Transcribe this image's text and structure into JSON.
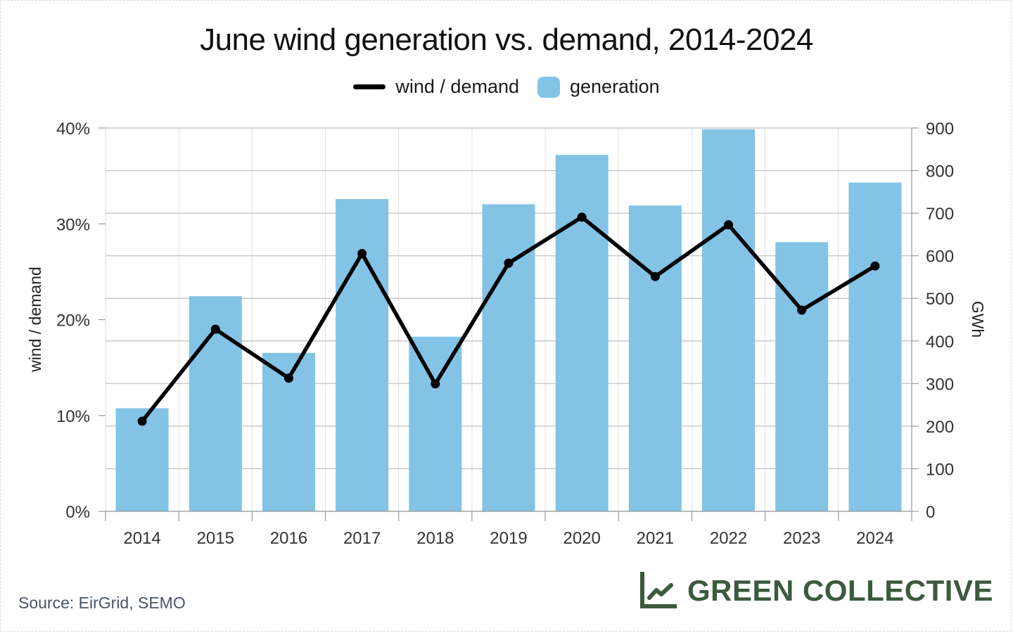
{
  "chart_data": {
    "type": "bar",
    "title": "June wind generation vs. demand, 2014-2024",
    "categories": [
      "2014",
      "2015",
      "2016",
      "2017",
      "2018",
      "2019",
      "2020",
      "2021",
      "2022",
      "2023",
      "2024"
    ],
    "series": [
      {
        "name": "generation",
        "kind": "bar",
        "axis": "right",
        "color": "#83c3e6",
        "values": [
          242,
          505,
          372,
          733,
          410,
          721,
          837,
          718,
          897,
          632,
          772
        ]
      },
      {
        "name": "wind / demand",
        "kind": "line",
        "axis": "left",
        "color": "#000000",
        "values": [
          9.4,
          19.0,
          13.9,
          26.9,
          13.3,
          25.9,
          30.7,
          24.5,
          29.9,
          21.0,
          25.6
        ]
      }
    ],
    "left_axis": {
      "label": "wind / demand",
      "range": [
        0,
        40
      ],
      "ticks": [
        0,
        10,
        20,
        30,
        40
      ],
      "tick_labels": [
        "0%",
        "10%",
        "20%",
        "30%",
        "40%"
      ]
    },
    "right_axis": {
      "label": "GWh",
      "range": [
        0,
        900
      ],
      "ticks": [
        0,
        100,
        200,
        300,
        400,
        500,
        600,
        700,
        800,
        900
      ],
      "tick_labels": [
        "0",
        "100",
        "200",
        "300",
        "400",
        "500",
        "600",
        "700",
        "800",
        "900"
      ]
    },
    "grid": true,
    "legend_position": "top-center"
  },
  "footer": {
    "source": "Source: EirGrid, SEMO",
    "brand": "GREEN COLLECTIVE",
    "brand_icon": "line-chart-icon"
  }
}
